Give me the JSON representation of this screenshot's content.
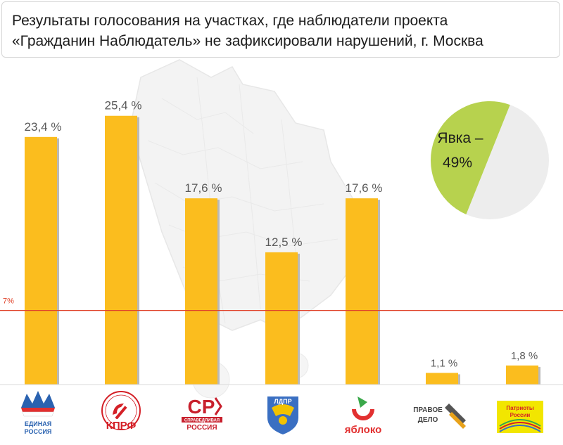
{
  "title": {
    "line1": "Результаты голосования на участках, где наблюдатели проекта",
    "line2": "«Гражданин Наблюдатель» не зафиксировали нарушений, г. Москва"
  },
  "chart_data": {
    "type": "bar",
    "categories": [
      "Единая Россия",
      "КПРФ",
      "Справедливая Россия",
      "ЛДПР",
      "Яблоко",
      "Правое дело",
      "Патриоты России"
    ],
    "values": [
      23.4,
      25.4,
      17.6,
      12.5,
      17.6,
      1.1,
      1.8
    ],
    "value_labels": [
      "23,4 %",
      "25,4 %",
      "17,6 %",
      "12,5 %",
      "17,6 %",
      "1,1 %",
      "1,8 %"
    ],
    "threshold": {
      "value": 7,
      "label": "7%"
    },
    "ylim": [
      0,
      30
    ],
    "grid": false,
    "bar_color": "#fbbd1e",
    "bar_shadow_color": "#b9b9b9",
    "threshold_color": "#e0432a"
  },
  "turnout": {
    "value": 49,
    "label_line1": "Явка –",
    "label_line2": "49%",
    "fill_color": "#b7d24e",
    "rest_color": "#ededed"
  },
  "logos": [
    {
      "name": "edinaya-rossiya-logo",
      "text_line1": "ЕДИНАЯ",
      "text_line2": "РОССИЯ",
      "colors": [
        "#2a62b0",
        "#e23030"
      ]
    },
    {
      "name": "kprf-logo",
      "text_line1": "КПРФ",
      "colors": [
        "#d42027"
      ]
    },
    {
      "name": "spravedlivaya-rossiya-logo",
      "text_line1": "СР",
      "text_line2": "СПРАВЕДЛИВАЯ",
      "text_line3": "РОССИЯ",
      "colors": [
        "#c8202d"
      ]
    },
    {
      "name": "ldpr-logo",
      "text_line1": "ЛДПР",
      "colors": [
        "#3a6fc2",
        "#f2c200"
      ]
    },
    {
      "name": "yabloko-logo",
      "text_line1": "яблоко",
      "colors": [
        "#e23030",
        "#3aa84a"
      ]
    },
    {
      "name": "pravoe-delo-logo",
      "text_line1": "ПРАВОЕ",
      "text_line2": "ДЕЛО",
      "colors": [
        "#444444",
        "#e8a21a"
      ]
    },
    {
      "name": "patrioty-rossii-logo",
      "text_line1": "Патриоты",
      "text_line2": "России",
      "colors": [
        "#f2e600",
        "#d42027"
      ]
    }
  ]
}
